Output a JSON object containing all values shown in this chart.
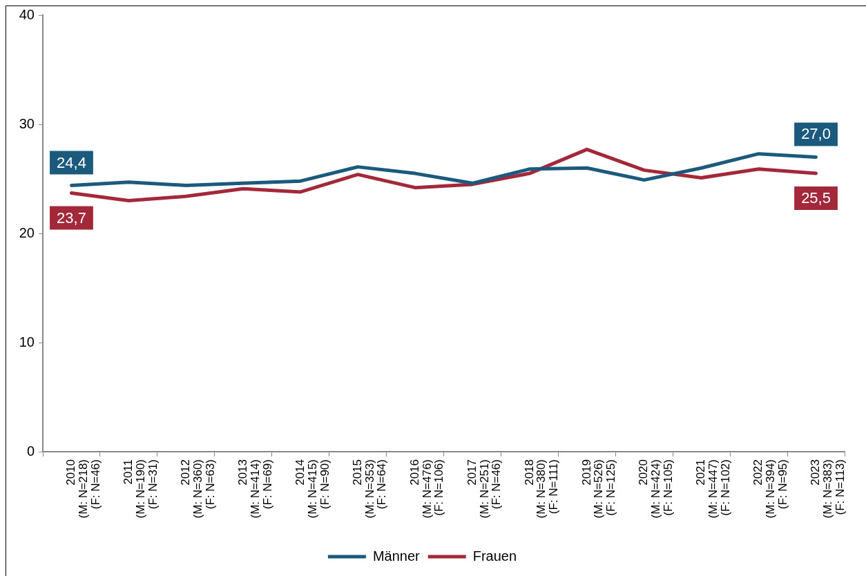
{
  "chart_data": {
    "type": "line",
    "categories": [
      "2010\n(M: N=218)\n(F: N=46)",
      "2011\n(M: N=190)\n(F: N=31)",
      "2012\n(M: N=360)\n(F: N=63)",
      "2013\n(M: N=414)\n(F: N=69)",
      "2014\n(M: N=415)\n(F: N=90)",
      "2015\n(M: N=353)\n(F: N=64)",
      "2016\n(M: N=476)\n(F: N=106)",
      "2017\n(M: N=251)\n(F: N=46)",
      "2018\n(M: N=380)\n(F: N=111)",
      "2019\n(M: N=526)\n(F: N=125)",
      "2020\n(M: N=424)\n(F: N=105)",
      "2021\n(M: N=447)\n(F: N=102)",
      "2022\n(M: N=394)\n(F: N=95)",
      "2023\n(M: N=383)\n(F: N=113)"
    ],
    "series": [
      {
        "name": "Männer",
        "color": "#1c5a7d",
        "values": [
          24.4,
          24.7,
          24.4,
          24.6,
          24.8,
          26.1,
          25.5,
          24.6,
          25.9,
          26.0,
          24.9,
          26.0,
          27.3,
          27.0
        ],
        "value_labels": [
          "24,4",
          null,
          null,
          null,
          null,
          null,
          null,
          null,
          null,
          null,
          null,
          null,
          null,
          "27,0"
        ]
      },
      {
        "name": "Frauen",
        "color": "#a2283a",
        "values": [
          23.7,
          23.0,
          23.4,
          24.1,
          23.8,
          25.4,
          24.2,
          24.5,
          25.5,
          27.7,
          25.8,
          25.1,
          25.9,
          25.5
        ],
        "value_labels": [
          "23,7",
          null,
          null,
          null,
          null,
          null,
          null,
          null,
          null,
          null,
          null,
          null,
          null,
          "25,5"
        ]
      }
    ],
    "ylim": [
      0,
      40
    ],
    "yticks": [
      0,
      10,
      20,
      30,
      40
    ],
    "grid": false,
    "legend": "bottom",
    "marker": "none",
    "line_style": "solid"
  }
}
